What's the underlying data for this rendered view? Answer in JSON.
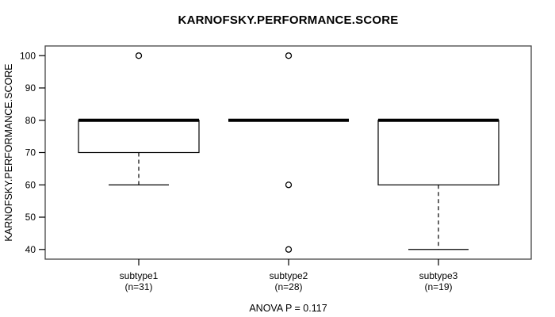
{
  "figure": {
    "title": "KARNOFSKY.PERFORMANCE.SCORE",
    "annotation": "ANOVA P = 0.117"
  },
  "chart_data": {
    "type": "boxplot",
    "title": "KARNOFSKY.PERFORMANCE.SCORE",
    "ylabel": "KARNOFSKY.PERFORMANCE.SCORE",
    "xlabel": "",
    "ylim": [
      37,
      103
    ],
    "yticks": [
      40,
      50,
      60,
      70,
      80,
      90,
      100
    ],
    "grid": false,
    "legend": "none",
    "annotation": "ANOVA P = 0.117",
    "groups": [
      {
        "label": "subtype1",
        "sublabel": "(n=31)",
        "n": 31,
        "whisker_low": 60,
        "q1": 70,
        "median": 80,
        "q3": 80,
        "whisker_high": 80,
        "outliers": [
          100
        ]
      },
      {
        "label": "subtype2",
        "sublabel": "(n=28)",
        "n": 28,
        "whisker_low": 80,
        "q1": 80,
        "median": 80,
        "q3": 80,
        "whisker_high": 80,
        "outliers": [
          100,
          60,
          40
        ]
      },
      {
        "label": "subtype3",
        "sublabel": "(n=19)",
        "n": 19,
        "whisker_low": 40,
        "q1": 60,
        "median": 80,
        "q3": 80,
        "whisker_high": 80,
        "outliers": []
      }
    ],
    "colors": {
      "stroke": "#000000",
      "frame": "#444444",
      "background": "#ffffff"
    }
  }
}
